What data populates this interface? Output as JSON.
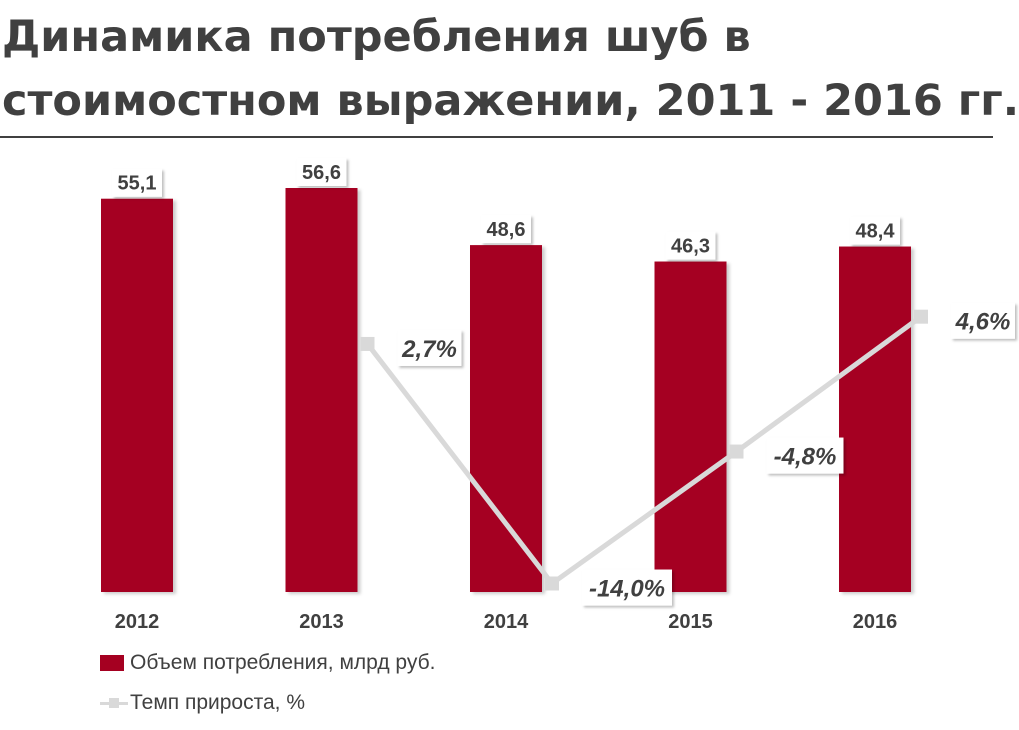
{
  "title": {
    "line1": "Динамика потребления шуб в",
    "line2": "стоимостном выражении, 2011 - 2016 гг."
  },
  "colors": {
    "bar": "#A50021",
    "line": "#D9D9D9",
    "text": "#404040"
  },
  "chart_data": {
    "type": "bar",
    "categories": [
      "2012",
      "2013",
      "2014",
      "2015",
      "2016"
    ],
    "series": [
      {
        "name": "Объем потребления, млрд руб.",
        "type": "bar",
        "values": [
          55.1,
          56.6,
          48.6,
          46.3,
          48.4
        ],
        "labels": [
          "55,1",
          "56,6",
          "48,6",
          "46,3",
          "48,4"
        ]
      },
      {
        "name": "Темп прироста, %",
        "type": "line",
        "values": [
          null,
          2.7,
          -14.0,
          -4.8,
          4.6
        ],
        "labels": [
          null,
          "2,7%",
          "-14,0%",
          "-4,8%",
          "4,6%"
        ]
      }
    ],
    "bar_ylim": [
      0,
      56.6
    ],
    "line_ylim": [
      -14.8,
      8.9
    ],
    "grid": false,
    "legend_position": "bottom-left"
  }
}
